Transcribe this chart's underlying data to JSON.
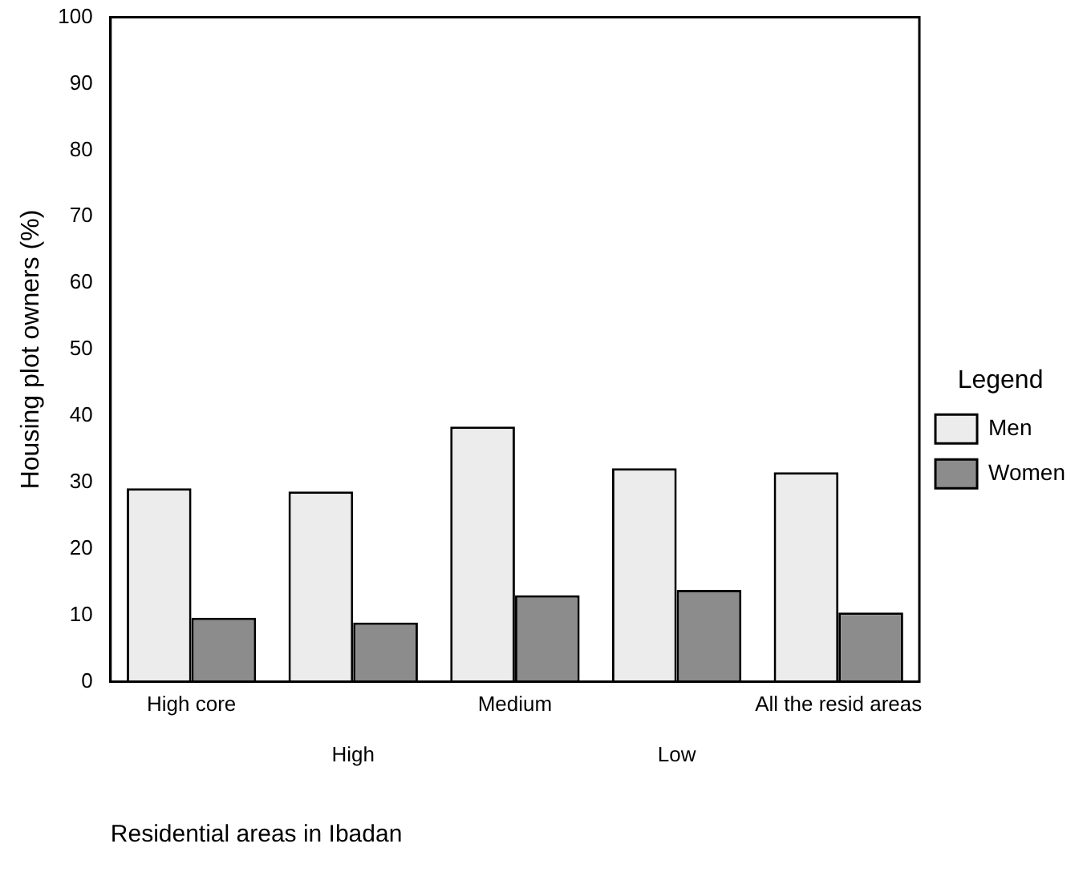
{
  "chart_data": {
    "type": "bar",
    "xlabel": "Residential areas in Ibadan",
    "ylabel": "Housing plot owners (%)",
    "legend_title": "Legend",
    "legend": "right",
    "grid": false,
    "categories": [
      "High core",
      "High",
      "Medium",
      "Low",
      "All the resid areas"
    ],
    "series": [
      {
        "name": "Men",
        "color": "#ececec",
        "values": [
          29.1,
          28.6,
          38.4,
          32.1,
          31.5
        ]
      },
      {
        "name": "Women",
        "color": "#8c8c8c",
        "values": [
          9.6,
          8.9,
          13,
          13.8,
          10.4
        ]
      }
    ],
    "ylim": [
      0,
      100
    ],
    "yticks": [
      0,
      10,
      20,
      30,
      40,
      50,
      60,
      70,
      80,
      90,
      100
    ]
  }
}
